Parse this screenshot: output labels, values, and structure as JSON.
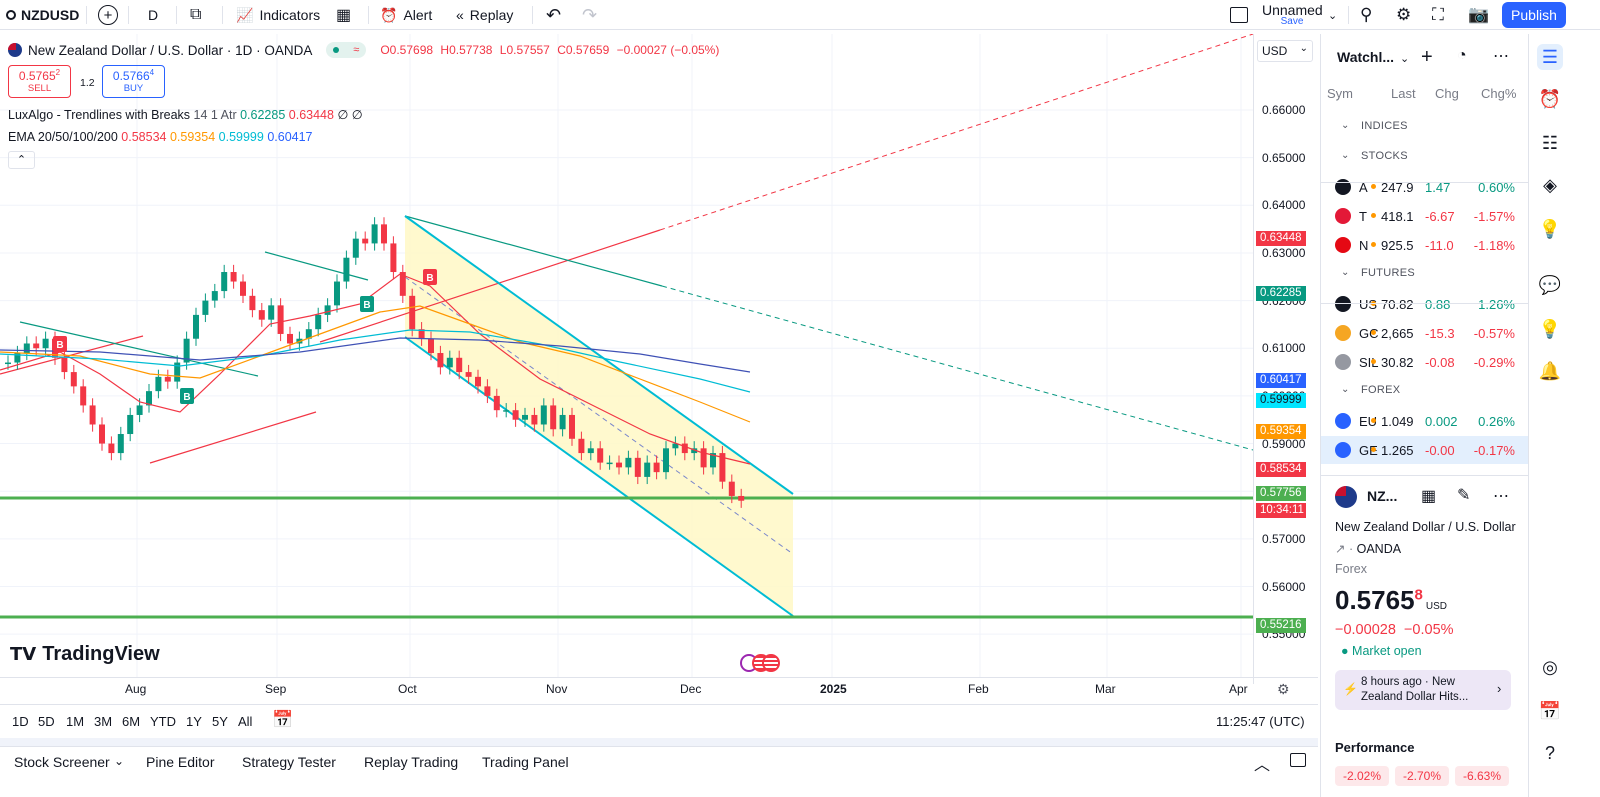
{
  "topbar": {
    "symbol": "NZDUSD",
    "interval": "D",
    "indicators_label": "Indicators",
    "alert_label": "Alert",
    "replay_label": "Replay",
    "layout_name": "Unnamed",
    "layout_status": "Save",
    "publish_label": "Publish"
  },
  "legend": {
    "title": "New Zealand Dollar / U.S. Dollar · 1D · OANDA",
    "o": "O0.57698",
    "h": "H0.57738",
    "l": "L0.57557",
    "c": "C0.57659",
    "chg": "−0.00027 (−0.05%)",
    "sell_price": "0.5765",
    "sell_sup": "2",
    "sell_label": "SELL",
    "spread": "1.2",
    "buy_price": "0.5766",
    "buy_sup": "4",
    "buy_label": "BUY",
    "ind1_name": "LuxAlgo - Trendlines with Breaks",
    "ind1_params": "14 1 Atr",
    "ind1_v1": "0.62285",
    "ind1_v2": "0.63448",
    "ind1_v3": "∅ ∅",
    "ind2_name": "EMA 20/50/100/200",
    "ind2_v1": "0.58534",
    "ind2_v2": "0.59354",
    "ind2_v3": "0.59999",
    "ind2_v4": "0.60417",
    "currency": "USD"
  },
  "colors": {
    "green": "#089981",
    "red": "#f23645",
    "blue": "#2962ff",
    "orange": "#ff9800",
    "cyan": "#00bcd4",
    "channel": "#00bcd4",
    "fill": "#fff8c5",
    "hline": "#4caf50",
    "brand": "#2962ff"
  },
  "price_axis": {
    "ticks": [
      "0.66000",
      "0.65000",
      "0.64000",
      "0.63000",
      "0.62000",
      "0.61000",
      "0.60000",
      "0.59000",
      "0.58000",
      "0.57000",
      "0.56000",
      "0.55000"
    ],
    "badges": [
      {
        "text": "0.63448",
        "color": "#f23645"
      },
      {
        "text": "0.62285",
        "color": "#089981"
      },
      {
        "text": "0.60417",
        "color": "#2962ff"
      },
      {
        "text": "0.59999",
        "color": "#00e5ff"
      },
      {
        "text": "0.59354",
        "color": "#ff9800"
      },
      {
        "text": "0.58534",
        "color": "#f23645"
      },
      {
        "text": "0.57756",
        "color": "#4caf50"
      },
      {
        "text": "10:34:11",
        "color": "#f23645"
      },
      {
        "text": "0.55216",
        "color": "#4caf50"
      }
    ]
  },
  "time_axis": [
    "Aug",
    "Sep",
    "Oct",
    "Nov",
    "Dec",
    "2025",
    "Feb",
    "Mar",
    "Apr"
  ],
  "ranges": [
    "1D",
    "5D",
    "1M",
    "3M",
    "6M",
    "YTD",
    "1Y",
    "5Y",
    "All"
  ],
  "clock": "11:25:47 (UTC)",
  "brand": "TradingView",
  "bottom_tabs": [
    "Stock Screener",
    "Pine Editor",
    "Strategy Tester",
    "Replay Trading",
    "Trading Panel"
  ],
  "watchlist": {
    "title": "Watchl...",
    "cols": [
      "Sym",
      "Last",
      "Chg",
      "Chg%"
    ],
    "groups": [
      {
        "name": "INDICES",
        "items": []
      },
      {
        "name": "STOCKS",
        "items": [
          {
            "sym": "A",
            "last": "247.9",
            "chg": "1.47",
            "pct": "0.60%",
            "dir": "pos",
            "icon": "#131722"
          },
          {
            "sym": "T",
            "last": "418.1",
            "chg": "-6.67",
            "pct": "-1.57%",
            "dir": "neg",
            "icon": "#e31937"
          },
          {
            "sym": "N",
            "last": "925.5",
            "chg": "-11.0",
            "pct": "-1.18%",
            "dir": "neg",
            "icon": "#e50914"
          }
        ]
      },
      {
        "name": "FUTURES",
        "items": [
          {
            "sym": "US",
            "last": "70.82",
            "chg": "0.88",
            "pct": "1.26%",
            "dir": "pos",
            "icon": "#131722"
          },
          {
            "sym": "GC",
            "last": "2,665",
            "chg": "-15.3",
            "pct": "-0.57%",
            "dir": "neg",
            "icon": "#f5a623"
          },
          {
            "sym": "SIL",
            "last": "30.82",
            "chg": "-0.08",
            "pct": "-0.29%",
            "dir": "neg",
            "icon": "#9598a1"
          }
        ]
      },
      {
        "name": "FOREX",
        "items": [
          {
            "sym": "EU",
            "last": "1.049",
            "chg": "0.002",
            "pct": "0.26%",
            "dir": "pos",
            "icon": "#2962ff"
          },
          {
            "sym": "GE",
            "last": "1.265",
            "chg": "-0.00",
            "pct": "-0.17%",
            "dir": "neg",
            "icon": "#2962ff"
          }
        ]
      }
    ]
  },
  "details": {
    "symbol": "NZ...",
    "name": "New Zealand Dollar / U.S. Dollar",
    "exchange": "OANDA",
    "type": "Forex",
    "price": "0.5765",
    "price_sup": "8",
    "currency": "USD",
    "change": "−0.00028",
    "change_pct": "−0.05%",
    "status": "Market open",
    "news": "8 hours ago · New Zealand Dollar Hits...",
    "perf_title": "Performance",
    "perf": [
      "-2.02%",
      "-2.70%",
      "-6.63%"
    ]
  }
}
